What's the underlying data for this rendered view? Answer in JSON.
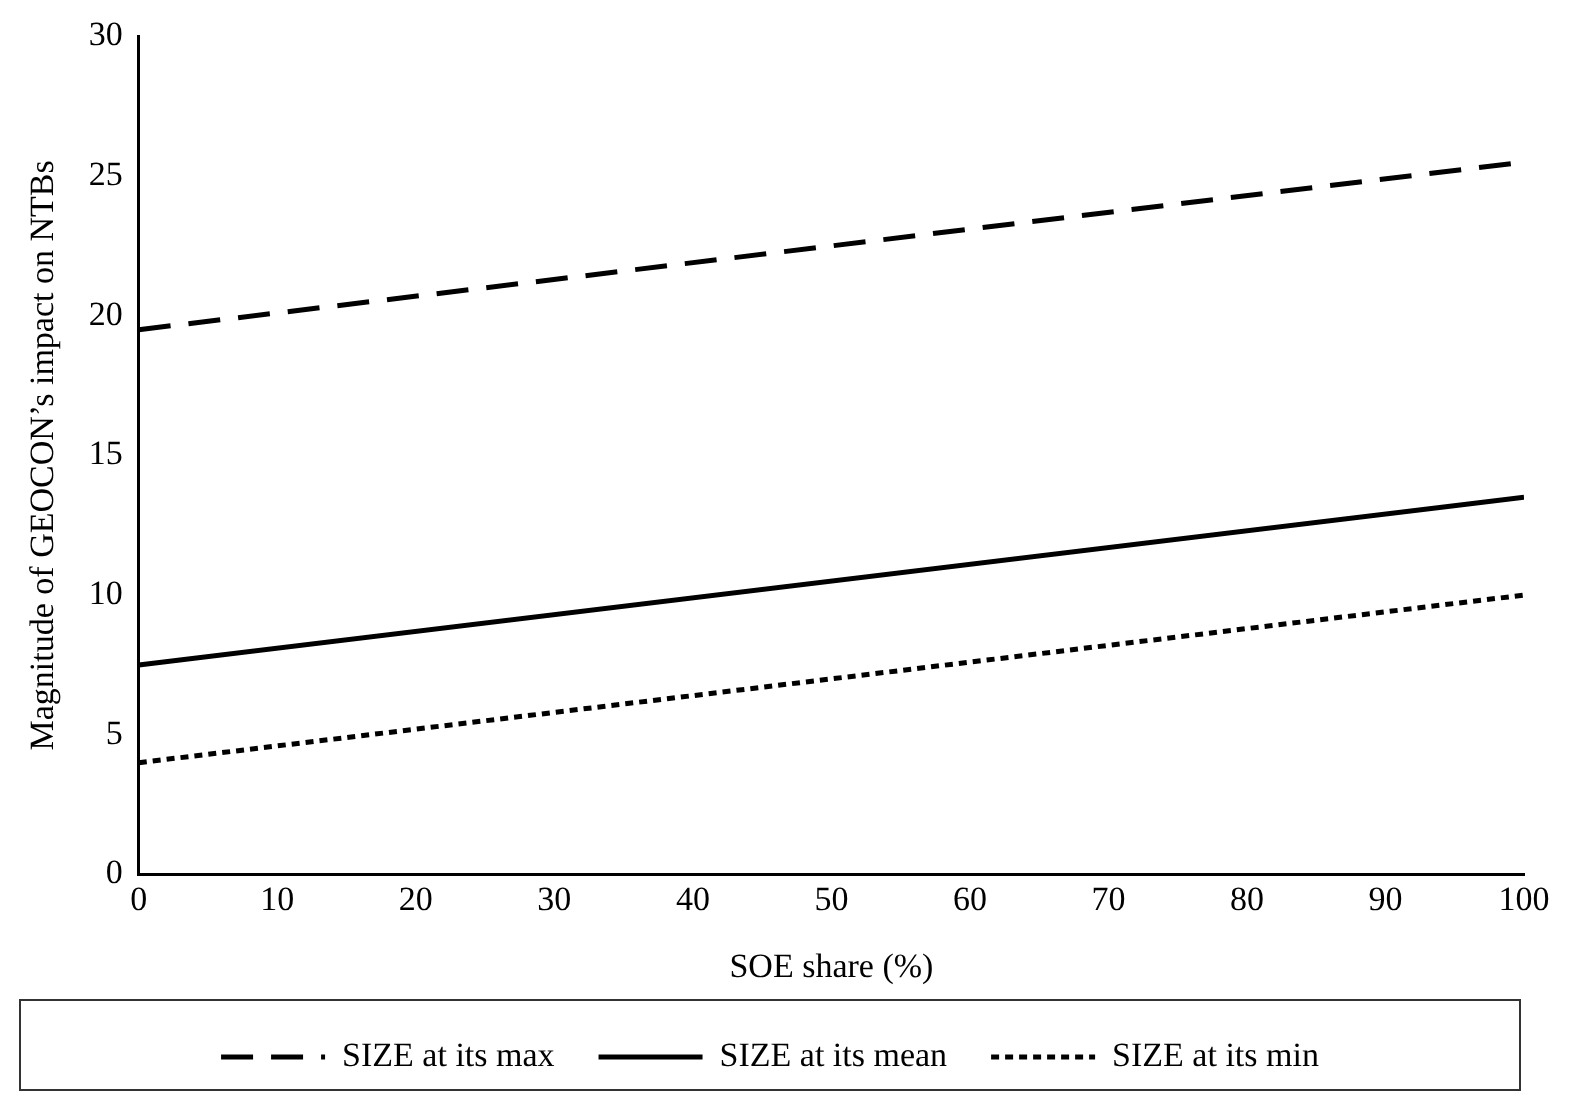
{
  "chart_data": {
    "type": "line",
    "xlabel": "SOE share (%)",
    "ylabel": "Magnitude of GEOCON’s impact on NTBs",
    "x": [
      0,
      100
    ],
    "series": [
      {
        "name": "SIZE at its max",
        "color": "#000000",
        "values": [
          19.5,
          25.5
        ],
        "line_style": "dashed"
      },
      {
        "name": "SIZE at its mean",
        "color": "#000000",
        "values": [
          7.5,
          13.5
        ],
        "line_style": "solid"
      },
      {
        "name": "SIZE at its min",
        "color": "#000000",
        "values": [
          4,
          10
        ],
        "line_style": "dotted"
      }
    ],
    "xlim": [
      0,
      100
    ],
    "xticks": [
      0,
      10,
      20,
      30,
      40,
      50,
      60,
      70,
      80,
      90,
      100
    ],
    "ylim": [
      0,
      30
    ],
    "yticks": [
      0,
      5,
      10,
      15,
      20,
      25,
      30
    ],
    "grid": false,
    "legend": "bottom",
    "marker": "none"
  }
}
